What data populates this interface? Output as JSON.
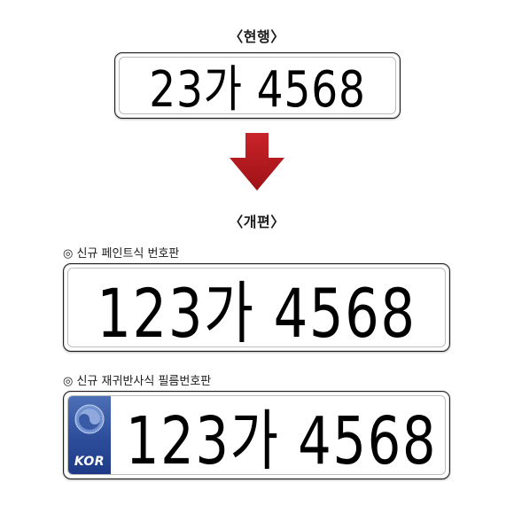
{
  "current": {
    "heading": "〈현행〉",
    "plate_number": "23가 4568"
  },
  "revised": {
    "heading": "〈개편〉",
    "paint_plate": {
      "caption": "◎ 신규 페인트식 번호판",
      "plate_number": "123가 4568"
    },
    "film_plate": {
      "caption": "◎ 신규 재귀반사식 필름번호판",
      "plate_number": "123가 4568",
      "country_code": "KOR",
      "band_color": "#2d4d9b"
    }
  },
  "arrow": {
    "icon": "down-arrow-icon",
    "color": "#b5161b"
  }
}
